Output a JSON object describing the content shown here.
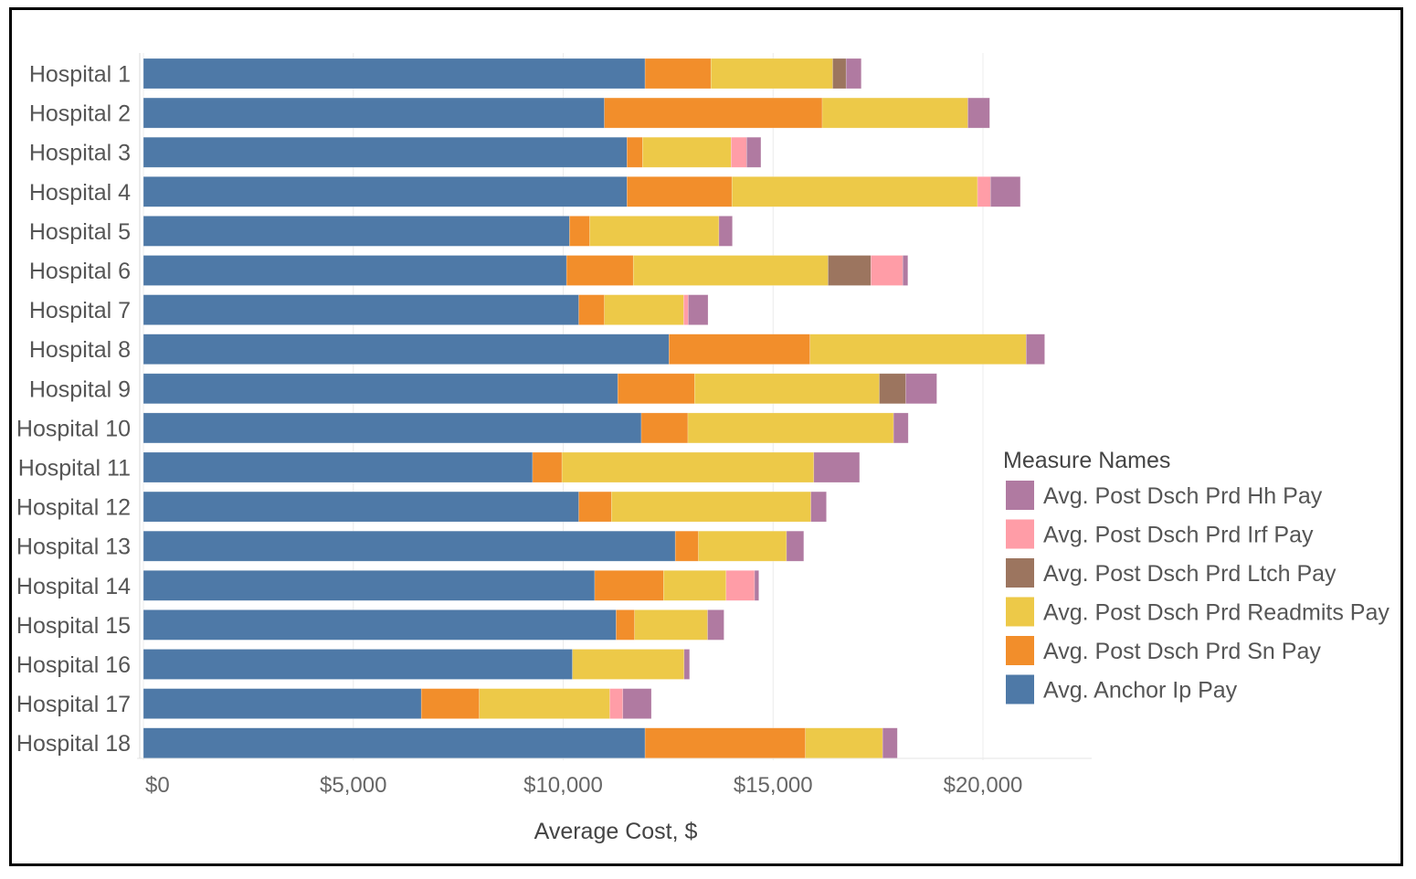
{
  "chart_data": {
    "type": "bar",
    "orientation": "horizontal",
    "stacked": true,
    "title": "",
    "xlabel": "Average Cost, $",
    "ylabel": "",
    "xlim": [
      0,
      22500
    ],
    "x_ticks": [
      0,
      5000,
      10000,
      15000,
      20000
    ],
    "x_tick_labels": [
      "$0",
      "$5,000",
      "$10,000",
      "$15,000",
      "$20,000"
    ],
    "grid": true,
    "legend_title": "Measure Names",
    "legend_position": "right",
    "categories": [
      "Hospital 1",
      "Hospital 2",
      "Hospital 3",
      "Hospital 4",
      "Hospital 5",
      "Hospital 6",
      "Hospital 7",
      "Hospital 8",
      "Hospital 9",
      "Hospital 10",
      "Hospital 11",
      "Hospital 12",
      "Hospital 13",
      "Hospital 14",
      "Hospital 15",
      "Hospital 16",
      "Hospital 17",
      "Hospital 18"
    ],
    "series": [
      {
        "name": "Avg. Anchor Ip Pay",
        "color": "#4e79a7",
        "values": [
          11950,
          10980,
          11520,
          11520,
          10150,
          10080,
          10370,
          12520,
          11300,
          11860,
          9270,
          10370,
          12670,
          10750,
          11260,
          10220,
          6620,
          11950
        ]
      },
      {
        "name": "Avg. Post Dsch Prd Sn Pay",
        "color": "#f28e2b",
        "values": [
          1570,
          5190,
          370,
          2500,
          480,
          1590,
          610,
          3360,
          1830,
          1110,
          700,
          780,
          550,
          1640,
          440,
          0,
          1380,
          3820
        ]
      },
      {
        "name": "Avg. Post Dsch Prd Readmits Pay",
        "color": "#edc948",
        "values": [
          2900,
          3470,
          2110,
          5850,
          3080,
          4640,
          1890,
          5150,
          4400,
          4900,
          6000,
          4750,
          2100,
          1490,
          1740,
          2660,
          3110,
          1840
        ]
      },
      {
        "name": "Avg. Post Dsch Prd Ltch Pay",
        "color": "#9c755f",
        "values": [
          320,
          0,
          0,
          0,
          0,
          1020,
          0,
          0,
          630,
          0,
          0,
          0,
          0,
          0,
          0,
          0,
          0,
          0
        ]
      },
      {
        "name": "Avg. Post Dsch Prd Irf Pay",
        "color": "#ff9da7",
        "values": [
          0,
          0,
          370,
          310,
          0,
          760,
          110,
          0,
          0,
          0,
          0,
          0,
          0,
          680,
          0,
          0,
          310,
          0
        ]
      },
      {
        "name": "Avg. Post Dsch Prd Hh Pay",
        "color": "#b07aa1",
        "values": [
          360,
          520,
          340,
          710,
          320,
          120,
          470,
          440,
          740,
          350,
          1090,
          370,
          410,
          100,
          390,
          130,
          680,
          350
        ]
      }
    ],
    "legend_order": [
      "Avg. Post Dsch Prd Hh Pay",
      "Avg. Post Dsch Prd Irf Pay",
      "Avg. Post Dsch Prd Ltch Pay",
      "Avg. Post Dsch Prd Readmits Pay",
      "Avg. Post Dsch Prd Sn Pay",
      "Avg. Anchor Ip Pay"
    ]
  }
}
